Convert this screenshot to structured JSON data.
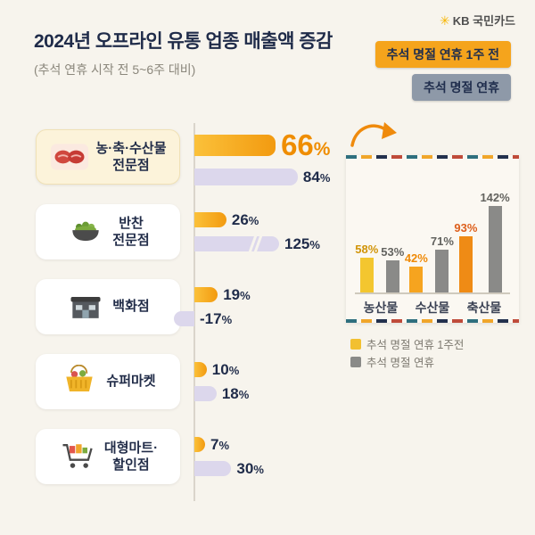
{
  "brand": {
    "symbol": "✳",
    "name": "KB 국민카드"
  },
  "badges": [
    {
      "label": "추석 명절 연휴 1주 전"
    },
    {
      "label": "추석 명절 연휴"
    }
  ],
  "strings": {
    "pct": "%"
  },
  "colors": {
    "background": "#f7f4ed",
    "navy": "#1f2b49",
    "accent_orange": "#f29a10",
    "lavender": "#dcd7ec",
    "badge_orange": "#f5a41c",
    "badge_gray_blue": "#8e99a8",
    "inset_yellow": "#f3c62f",
    "inset_orange": "#f6a41f",
    "inset_deep_orange": "#ef8b15",
    "inset_gray": "#8a8a88"
  },
  "chart_data": [
    {
      "type": "bar",
      "orientation": "horizontal",
      "title": "2024년 오프라인 유통 업종 매출액 증감",
      "subtitle": "(추석 연휴 시작 전 5~6주 대비)",
      "unit": "%",
      "series_names": [
        "추석 명절 연휴 1주 전",
        "추석 명절 연휴"
      ],
      "rows": [
        {
          "label1": "농·축·수산물",
          "label2": "전문점",
          "week_before": 66,
          "holiday": 84
        },
        {
          "label1": "반찬",
          "label2": "전문점",
          "week_before": 26,
          "holiday": 125,
          "holiday_truncated": true
        },
        {
          "label1": "백화점",
          "label2": "",
          "week_before": 19,
          "holiday": -17
        },
        {
          "label1": "슈퍼마켓",
          "label2": "",
          "week_before": 10,
          "holiday": 18
        },
        {
          "label1": "대형마트·",
          "label2": "할인점",
          "week_before": 7,
          "holiday": 30
        }
      ]
    },
    {
      "type": "bar",
      "orientation": "vertical",
      "categories": [
        "농산물",
        "수산물",
        "축산물"
      ],
      "series": [
        {
          "name": "추석 명절 연휴 1주전",
          "values": [
            58,
            42,
            93
          ]
        },
        {
          "name": "추석 명절 연휴",
          "values": [
            53,
            71,
            142
          ]
        }
      ],
      "unit": "%",
      "ylim": [
        0,
        150
      ],
      "legend_position": "bottom-left"
    }
  ]
}
